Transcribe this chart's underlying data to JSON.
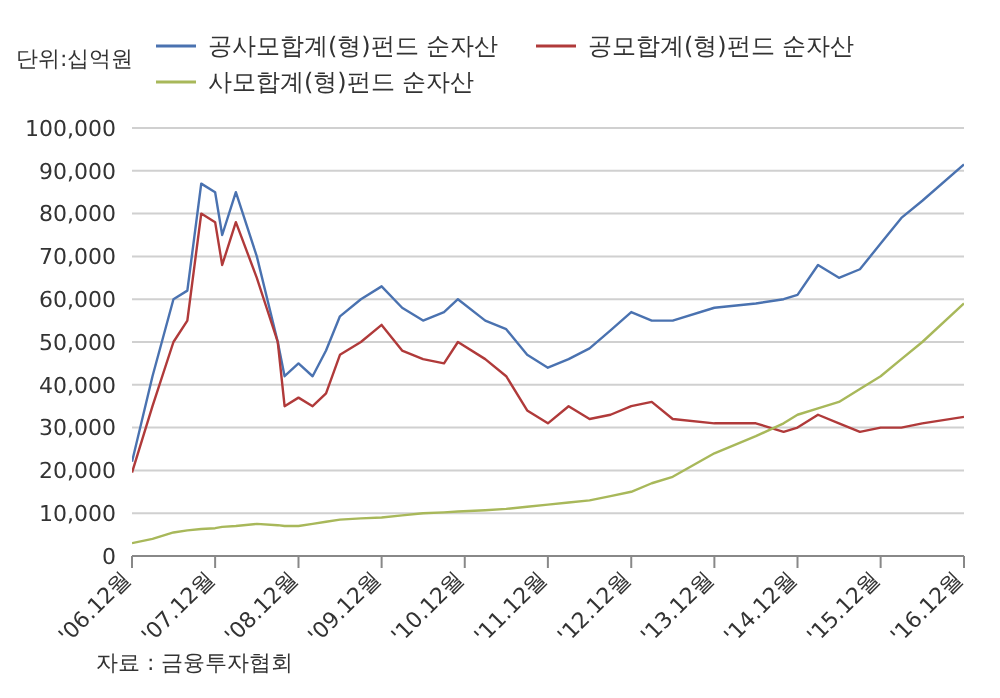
{
  "chart_data": {
    "type": "line",
    "ylabel": "단위:십억원",
    "annotations": [
      "자료 : 금융투자협회"
    ],
    "x": [
      "2006-12",
      "2007-03",
      "2007-06",
      "2007-08",
      "2007-10",
      "2007-12",
      "2008-01",
      "2008-03",
      "2008-06",
      "2008-09",
      "2008-10",
      "2008-12",
      "2009-02",
      "2009-04",
      "2009-06",
      "2009-09",
      "2009-12",
      "2010-03",
      "2010-06",
      "2010-09",
      "2010-11",
      "2011-03",
      "2011-06",
      "2011-09",
      "2011-12",
      "2012-03",
      "2012-06",
      "2012-09",
      "2012-12",
      "2013-03",
      "2013-06",
      "2013-12",
      "2014-06",
      "2014-10",
      "2014-12",
      "2015-03",
      "2015-06",
      "2015-09",
      "2015-12",
      "2016-03",
      "2016-06",
      "2016-12"
    ],
    "series": [
      {
        "name": "공사모합계(형)펀드 순자산",
        "color": "#4a72b0",
        "values": [
          22000,
          42000,
          60000,
          62000,
          87000,
          85000,
          75000,
          85000,
          70000,
          50000,
          42000,
          45000,
          42000,
          48000,
          56000,
          60000,
          63000,
          58000,
          55000,
          57000,
          60000,
          55000,
          53000,
          47000,
          44000,
          46000,
          48500,
          52700,
          57000,
          55000,
          55000,
          58000,
          59000,
          60000,
          61000,
          68000,
          65000,
          67000,
          73000,
          79000,
          83000,
          91500
        ]
      },
      {
        "name": "공모합계(형)펀드 순자산",
        "color": "#b03a3a",
        "values": [
          19500,
          35000,
          50000,
          55000,
          80000,
          78000,
          68000,
          78000,
          65000,
          50000,
          35000,
          37000,
          35000,
          38000,
          47000,
          50000,
          54000,
          48000,
          46000,
          45000,
          50000,
          46000,
          42000,
          34000,
          31000,
          35000,
          32000,
          33000,
          35000,
          36000,
          32000,
          31000,
          31000,
          29000,
          30000,
          33000,
          31000,
          29000,
          30000,
          30000,
          31000,
          32500
        ]
      },
      {
        "name": "사모합계(형)펀드 순자산",
        "color": "#a8b85a",
        "values": [
          3000,
          4000,
          5500,
          6000,
          6300,
          6500,
          6800,
          7000,
          7500,
          7200,
          7000,
          7000,
          7500,
          8000,
          8500,
          8800,
          9000,
          9500,
          10000,
          10200,
          10400,
          10700,
          11000,
          11500,
          12000,
          12500,
          13000,
          14000,
          15000,
          17000,
          18500,
          24000,
          28000,
          31000,
          33000,
          34500,
          36000,
          39000,
          42000,
          46000,
          50000,
          59000
        ]
      }
    ],
    "ylim": [
      0,
      100000
    ],
    "yticks": [
      0,
      {
        "value": 10000,
        "label": "10,000"
      },
      {
        "value": 20000,
        "label": "20,000"
      },
      {
        "value": 30000,
        "label": "30,000"
      },
      {
        "value": 40000,
        "label": "40,000"
      },
      {
        "value": 50000,
        "label": "50,000"
      },
      {
        "value": 60000,
        "label": "60,000"
      },
      {
        "value": 70000,
        "label": "70,000"
      },
      {
        "value": 80000,
        "label": "80,000"
      },
      {
        "value": 90000,
        "label": "90,000"
      },
      {
        "value": 100000,
        "label": "100,000"
      }
    ],
    "xlim": [
      "2006-12",
      "2016-12"
    ],
    "xticks": [
      {
        "value": "2006-12",
        "label": "'06.12월"
      },
      {
        "value": "2007-12",
        "label": "'07.12월"
      },
      {
        "value": "2008-12",
        "label": "'08.12월"
      },
      {
        "value": "2009-12",
        "label": "'09.12월"
      },
      {
        "value": "2010-12",
        "label": "'10.12월"
      },
      {
        "value": "2011-12",
        "label": "'11.12월"
      },
      {
        "value": "2012-12",
        "label": "'12.12월"
      },
      {
        "value": "2013-12",
        "label": "'13.12월"
      },
      {
        "value": "2014-12",
        "label": "'14.12월"
      },
      {
        "value": "2015-12",
        "label": "'15.12월"
      },
      {
        "value": "2016-12",
        "label": "'16.12월"
      }
    ],
    "grid": "y",
    "legend": "top",
    "marker": "none",
    "line_style": "solid"
  }
}
